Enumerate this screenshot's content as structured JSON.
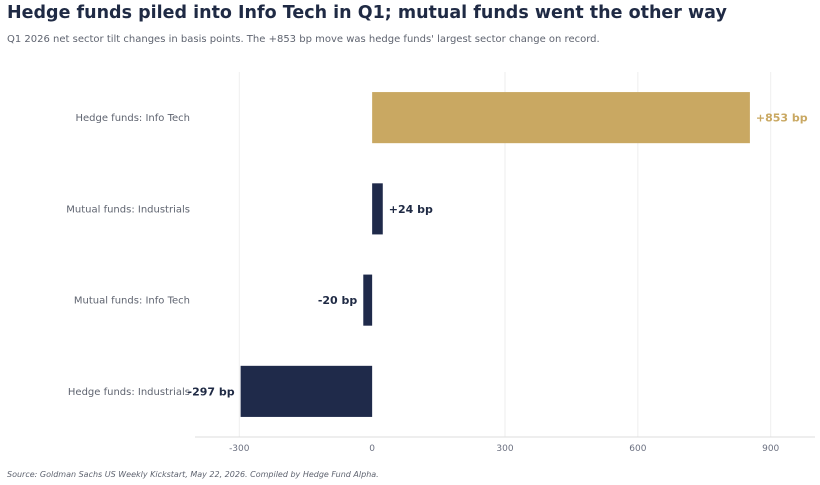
{
  "header": {
    "title": "Hedge funds piled into Info Tech in Q1; mutual funds went the other way",
    "subtitle": "Q1 2026 net sector tilt changes in basis points. The +853 bp move was hedge funds' largest sector change on record."
  },
  "footer": {
    "source": "Source: Goldman Sachs US Weekly Kickstart, May 22, 2026. Compiled by Hedge Fund Alpha."
  },
  "colors": {
    "highlight": "#c9a862",
    "bar": "#1f2a4a",
    "grid": "#eeeeee",
    "axis": "#dddddd"
  },
  "chart_data": {
    "type": "bar",
    "orientation": "horizontal",
    "categories": [
      "Hedge funds: Info Tech",
      "Mutual funds: Industrials",
      "Mutual funds: Info Tech",
      "Hedge funds: Industrials"
    ],
    "values": [
      853,
      24,
      -20,
      -297
    ],
    "value_labels": [
      "+853 bp",
      "+24 bp",
      "-20 bp",
      "-297 bp"
    ],
    "bar_colors": [
      "#c9a862",
      "#1f2a4a",
      "#1f2a4a",
      "#1f2a4a"
    ],
    "label_colors": [
      "#c9a862",
      "#1f2a44",
      "#1f2a44",
      "#1f2a44"
    ],
    "xlim": [
      -400,
      1000
    ],
    "xticks": [
      -300,
      0,
      300,
      600,
      900
    ],
    "xtick_labels": [
      "-300",
      "0",
      "300",
      "600",
      "900"
    ],
    "grid": "vertical",
    "legend": "none"
  }
}
